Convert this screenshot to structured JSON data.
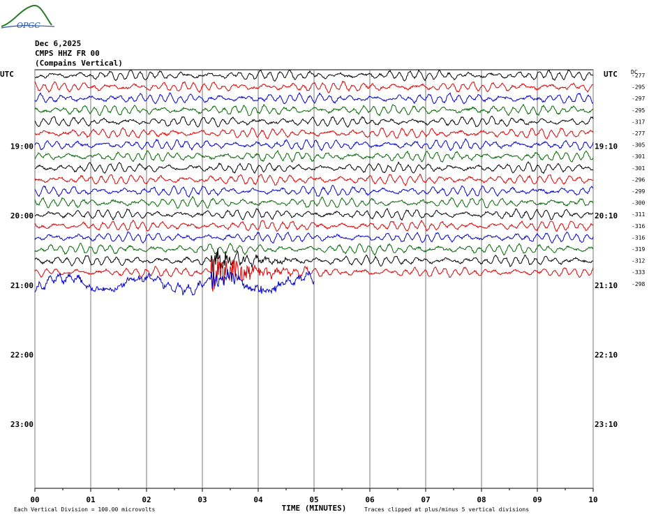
{
  "header": {
    "logo_text": "OPGC",
    "date": "Dec 6,2025",
    "station": "CMPS HHZ FR 00",
    "location": "(Compains Vertical)"
  },
  "colors": {
    "trace_cycle": [
      "#000000",
      "#dd0000",
      "#0000cc",
      "#006600"
    ],
    "grid": "#777777",
    "logo": "#2a7a2a"
  },
  "chart_data": {
    "type": "line",
    "title": "CMPS HHZ FR 00 (Compains Vertical)",
    "xlabel": "TIME (MINUTES)",
    "left_axis_label": "UTC",
    "right_axis_label": "UTC",
    "dc_label": "DC",
    "x_ticks": [
      "00",
      "01",
      "02",
      "03",
      "04",
      "05",
      "06",
      "07",
      "08",
      "09",
      "10"
    ],
    "xlim": [
      0,
      10
    ],
    "left_hour_labels": [
      {
        "row": 6.6,
        "label": "19:00"
      },
      {
        "row": 12.6,
        "label": "20:00"
      },
      {
        "row": 18.6,
        "label": "21:00"
      },
      {
        "row": 24.6,
        "label": "22:00"
      },
      {
        "row": 30.6,
        "label": "23:00"
      }
    ],
    "right_hour_labels": [
      {
        "row": 6.6,
        "label": "19:10"
      },
      {
        "row": 12.6,
        "label": "20:10"
      },
      {
        "row": 18.6,
        "label": "21:10"
      },
      {
        "row": 24.6,
        "label": "22:10"
      },
      {
        "row": 30.6,
        "label": "23:10"
      }
    ],
    "traces": [
      {
        "dc": "-277",
        "end_minute": 10
      },
      {
        "dc": "-295",
        "end_minute": 10
      },
      {
        "dc": "-297",
        "end_minute": 10
      },
      {
        "dc": "-295",
        "end_minute": 10
      },
      {
        "dc": "-317",
        "end_minute": 10
      },
      {
        "dc": "-277",
        "end_minute": 10
      },
      {
        "dc": "-305",
        "end_minute": 10
      },
      {
        "dc": "-301",
        "end_minute": 10
      },
      {
        "dc": "-301",
        "end_minute": 10
      },
      {
        "dc": "-296",
        "end_minute": 10
      },
      {
        "dc": "-299",
        "end_minute": 10
      },
      {
        "dc": "-300",
        "end_minute": 10
      },
      {
        "dc": "-311",
        "end_minute": 10
      },
      {
        "dc": "-316",
        "end_minute": 10
      },
      {
        "dc": "-316",
        "end_minute": 10
      },
      {
        "dc": "-319",
        "end_minute": 10
      },
      {
        "dc": "-312",
        "end_minute": 10
      },
      {
        "dc": "-333",
        "end_minute": 10
      },
      {
        "dc": "-298",
        "end_minute": 5
      }
    ],
    "event": {
      "start_minute": 3.15,
      "end_minute": 4.9,
      "rows": [
        16,
        17,
        18
      ]
    },
    "footer_left": "Each Vertical Division =  100.00 microvolts",
    "footer_right": "Traces clipped at plus/minus 5 vertical divisions"
  }
}
